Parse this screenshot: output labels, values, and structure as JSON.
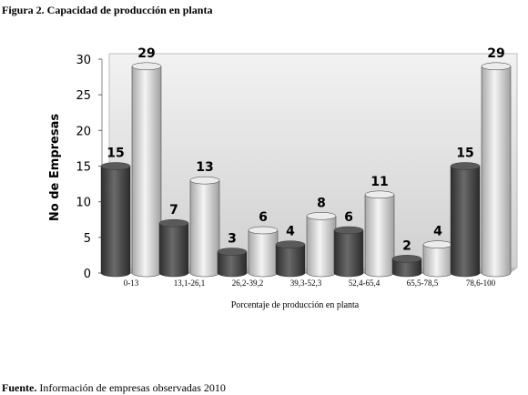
{
  "figure": {
    "title": "Figura 2. Capacidad de producción en planta",
    "source_label": "Fuente.",
    "source_text": " Información de empresas observadas 2010"
  },
  "chart_data": {
    "type": "bar",
    "title": "",
    "xlabel": "Porcentaje de producción en planta",
    "ylabel": "No de Empresas",
    "ylim": [
      0,
      30
    ],
    "yticks": [
      0,
      5,
      10,
      15,
      20,
      25,
      30
    ],
    "categories": [
      "0-13",
      "13,1-26,1",
      "26,2-39,2",
      "39,3-52,3",
      "52,4-65,4",
      "65,5-78,5",
      "78,6-100"
    ],
    "series": [
      {
        "values": [
          15,
          7,
          3,
          4,
          6,
          2,
          15
        ],
        "color": "#4a4a4a"
      },
      {
        "values": [
          29,
          13,
          6,
          8,
          11,
          4,
          29
        ],
        "color": "#c8c8c8"
      }
    ],
    "grid": false,
    "legend": "none"
  }
}
